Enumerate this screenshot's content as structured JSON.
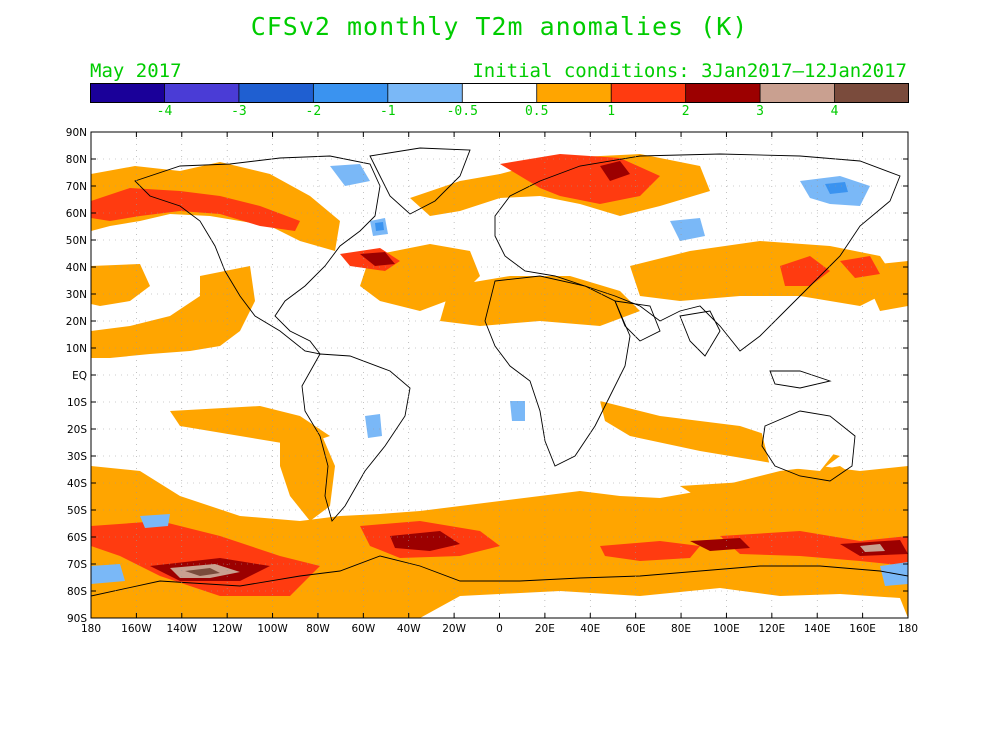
{
  "title": "CFSv2 monthly T2m anomalies (K)",
  "valid_month": "May 2017",
  "initial_conditions": "Initial conditions: 3Jan2017–12Jan2017",
  "colorbar": {
    "colors": [
      "#1a0099",
      "#4a3cd6",
      "#1f5fd1",
      "#3a93f0",
      "#7ab8f7",
      "#ffffff",
      "#ffa500",
      "#ff3b10",
      "#9c0000",
      "#c9a090",
      "#7a4b3c"
    ],
    "labels": [
      "-4",
      "-3",
      "-2",
      "-1",
      "-0.5",
      "0.5",
      "1",
      "2",
      "3",
      "4"
    ]
  },
  "lat_labels": [
    "90N",
    "80N",
    "70N",
    "60N",
    "50N",
    "40N",
    "30N",
    "20N",
    "10N",
    "EQ",
    "10S",
    "20S",
    "30S",
    "40S",
    "50S",
    "60S",
    "70S",
    "80S",
    "90S"
  ],
  "lon_labels": [
    "180",
    "160W",
    "140W",
    "120W",
    "100W",
    "80W",
    "60W",
    "40W",
    "20W",
    "0",
    "20E",
    "40E",
    "60E",
    "80E",
    "100E",
    "120E",
    "140E",
    "160E",
    "180"
  ],
  "colors": {
    "text": "#00cc00",
    "ocean": "#ffffff"
  }
}
